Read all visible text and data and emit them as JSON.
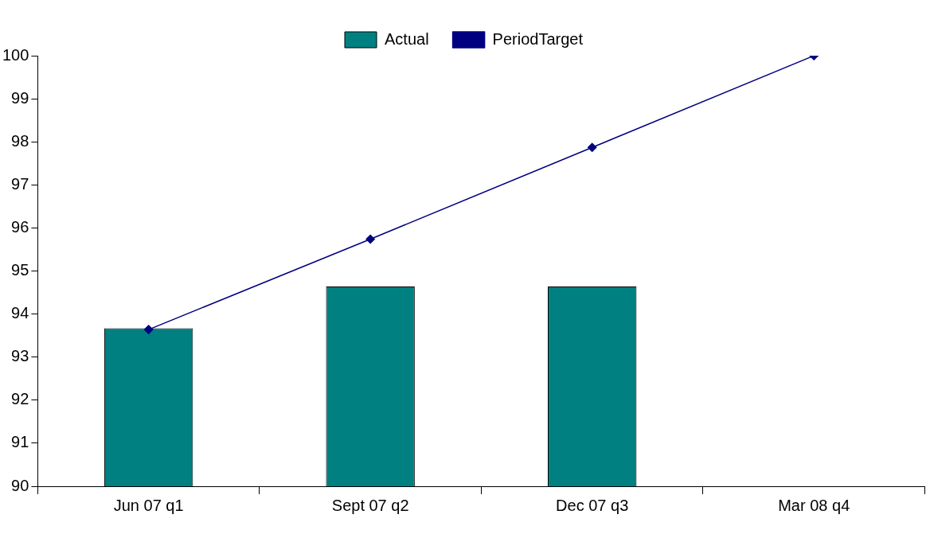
{
  "chart_data": {
    "type": "bar",
    "categories": [
      "Jun 07 q1",
      "Sept 07 q2",
      "Dec 07 q3",
      "Mar 08 q4"
    ],
    "series": [
      {
        "name": "Actual",
        "color": "#008080",
        "values": [
          93.67,
          94.64,
          94.64,
          null
        ]
      },
      {
        "name": "PeriodTarget",
        "type": "line",
        "color": "#000080",
        "values": [
          93.64,
          95.74,
          97.87,
          100
        ],
        "marker": "diamond"
      }
    ],
    "ylim": [
      90,
      100
    ],
    "yticks": [
      90,
      91,
      92,
      93,
      94,
      95,
      96,
      97,
      98,
      99,
      100
    ],
    "grid": false,
    "legend": "top"
  }
}
